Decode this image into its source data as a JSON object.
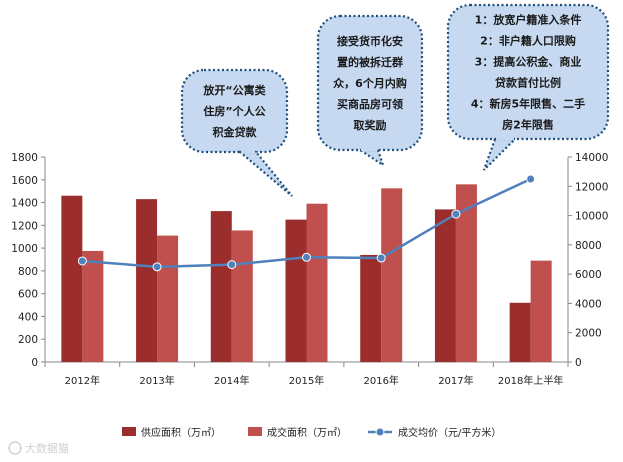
{
  "chart_data": {
    "type": "bar",
    "categories": [
      "2012年",
      "2013年",
      "2014年",
      "2015年",
      "2016年",
      "2017年",
      "2018年上半年"
    ],
    "series": [
      {
        "name": "供应面积（万㎡）",
        "type": "bar",
        "axis": "left",
        "color": "#9b2d2d",
        "values": [
          1460,
          1430,
          1325,
          1250,
          940,
          1340,
          520
        ]
      },
      {
        "name": "成交面积（万㎡）",
        "type": "bar",
        "axis": "left",
        "color": "#c0504d",
        "values": [
          975,
          1110,
          1155,
          1390,
          1525,
          1560,
          890
        ]
      },
      {
        "name": "成交均价（元/平方米）",
        "type": "line",
        "axis": "right",
        "color": "#4f81bd",
        "values": [
          6900,
          6500,
          6650,
          7150,
          7100,
          10100,
          12500
        ]
      }
    ],
    "y_left": {
      "min": 0,
      "max": 1800,
      "ticks": [
        0,
        200,
        400,
        600,
        800,
        1000,
        1200,
        1400,
        1600,
        1800
      ]
    },
    "y_right": {
      "min": 0,
      "max": 14000,
      "ticks": [
        0,
        2000,
        4000,
        6000,
        8000,
        10000,
        12000,
        14000
      ]
    },
    "grid": false,
    "legend": "bottom",
    "annotations": [
      {
        "lines": [
          "放开“公寓类",
          "住房”个人公",
          "积金贷款"
        ],
        "points_to": "2015年"
      },
      {
        "lines": [
          "接受货币化安",
          "置的被拆迁群",
          "众，6个月内购",
          "买商品房可领",
          "取奖励"
        ],
        "points_to": "2016年"
      },
      {
        "lines": [
          "1：放宽户籍准入条件",
          "2：非户籍人口限购",
          "3：提高公积金、商业",
          "贷款首付比例",
          "4：新房5年限售、二手",
          "房2年限售"
        ],
        "points_to": "2017年"
      }
    ]
  },
  "watermark": "大数据猫"
}
